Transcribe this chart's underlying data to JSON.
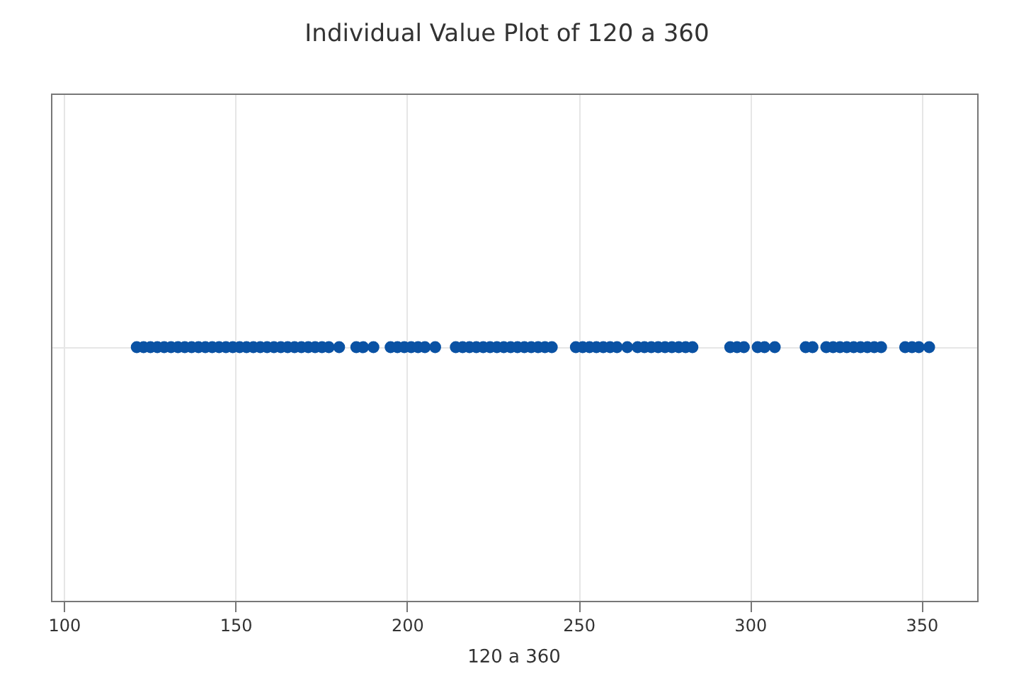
{
  "chart_data": {
    "type": "scatter",
    "title": "Individual Value Plot of 120 a 360",
    "xlabel": "120 a 360",
    "categories": [
      null
    ],
    "orientation": "horizontal",
    "marker": "circle",
    "xlim": [
      96,
      366
    ],
    "xticks": [
      100,
      150,
      200,
      250,
      300,
      350
    ],
    "grid": true,
    "series": [
      {
        "color": "#0a52a4",
        "x": [
          null,
          null,
          null,
          null,
          null,
          null,
          null,
          null,
          null,
          null,
          null,
          null,
          null,
          null,
          null,
          null,
          null,
          null,
          null,
          null,
          null,
          null,
          null,
          null,
          null,
          null,
          null,
          null,
          null,
          null,
          null,
          null,
          null,
          null,
          null,
          null,
          null,
          null,
          null,
          null,
          null,
          null,
          null,
          null,
          null,
          null,
          null,
          null,
          null,
          null,
          null,
          null,
          null,
          null,
          null,
          null,
          null,
          null,
          null,
          null,
          null,
          null,
          null,
          null,
          null,
          null,
          null,
          null,
          null,
          null,
          null,
          null,
          null,
          null,
          null,
          null,
          null,
          null,
          null,
          null,
          null,
          null,
          null,
          null,
          null,
          null,
          null,
          null,
          null,
          null,
          null,
          null,
          null
        ],
        "values": [
          121,
          123,
          125,
          127,
          129,
          131,
          133,
          135,
          137,
          139,
          141,
          143,
          145,
          147,
          149,
          151,
          153,
          155,
          157,
          159,
          161,
          163,
          165,
          167,
          169,
          171,
          173,
          175,
          177,
          180,
          185,
          187,
          190,
          195,
          197,
          199,
          201,
          203,
          205,
          208,
          214,
          216,
          218,
          220,
          222,
          224,
          226,
          228,
          230,
          232,
          234,
          236,
          238,
          240,
          242,
          249,
          251,
          253,
          255,
          257,
          259,
          261,
          264,
          267,
          269,
          271,
          273,
          275,
          277,
          279,
          281,
          283,
          294,
          296,
          298,
          302,
          304,
          307,
          316,
          318,
          322,
          324,
          326,
          328,
          330,
          332,
          334,
          336,
          338,
          345,
          347,
          349,
          352
        ]
      }
    ]
  }
}
